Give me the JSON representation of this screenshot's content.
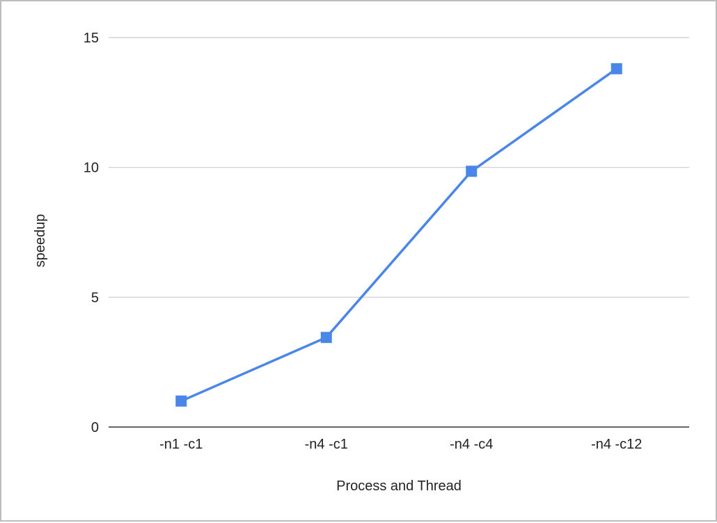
{
  "chart_data": {
    "type": "line",
    "title": "",
    "xlabel": "Process and Thread",
    "ylabel": "speedup",
    "categories": [
      "-n1 -c1",
      "-n4 -c1",
      "-n4 -c4",
      "-n4 -c12"
    ],
    "series": [
      {
        "values": [
          1.0,
          3.45,
          9.85,
          13.8
        ]
      }
    ],
    "ylim": [
      0,
      15
    ],
    "yticks": [
      0,
      5,
      10,
      15
    ],
    "grid": true,
    "legend": "none",
    "colors": {
      "series": "#4a86e8",
      "grid": "#cccccc",
      "axis": "#333333"
    }
  }
}
